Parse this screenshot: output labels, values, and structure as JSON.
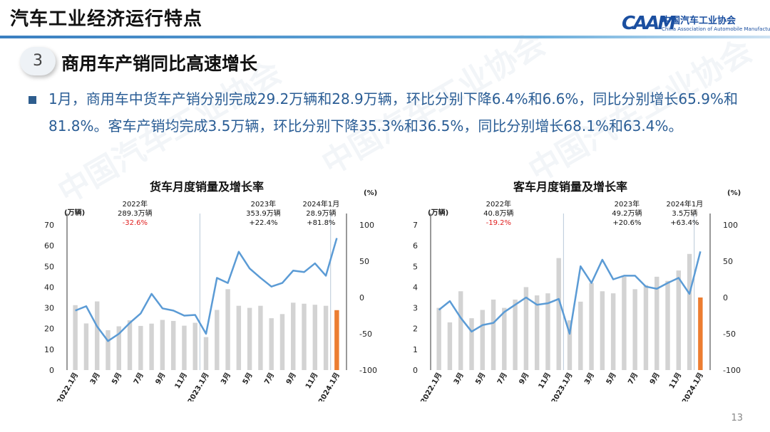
{
  "header": {
    "title": "汽车工业经济运行特点",
    "logo_mark": "CAAM",
    "logo_cn": "中国汽车工业协会",
    "logo_en": "China Association of Automobile Manufacturers"
  },
  "section": {
    "number": "3",
    "title": "商用车产销同比高速增长"
  },
  "summary": "1月，商用车中货车产销分别完成29.2万辆和28.9万辆，环比分别下降6.4%和6.6%，同比分别增长65.9%和81.8%。客车产销均完成3.5万辆，环比分别下降35.3%和36.5%，同比分别增长68.1%和63.4%。",
  "watermark": "中国汽车工业协会",
  "page_number": "13",
  "colors": {
    "bar": "#d3d3d3",
    "bar_highlight": "#ec7d31",
    "line": "#5b9bd5",
    "negative": "#e02020"
  },
  "chart_data": [
    {
      "type": "bar+line",
      "title": "货车月度销量及增长率",
      "left_axis_unit": "(万辆)",
      "right_axis_unit": "(%)",
      "left_ylim": [
        0,
        70
      ],
      "left_ticks": [
        0,
        10,
        20,
        30,
        40,
        50,
        60,
        70
      ],
      "right_ylim": [
        -100,
        100
      ],
      "right_ticks": [
        -100,
        -50,
        0,
        50,
        100
      ],
      "x_tick_labels": [
        "2022.1月",
        "3月",
        "5月",
        "7月",
        "9月",
        "11月",
        "2023.1月",
        "3月",
        "5月",
        "7月",
        "9月",
        "11月",
        "2024.1月"
      ],
      "x_tick_indices": [
        0,
        2,
        4,
        6,
        8,
        10,
        12,
        14,
        16,
        18,
        20,
        22,
        24
      ],
      "series": [
        {
          "name": "销量",
          "axis": "left",
          "values": [
            31.3,
            22.5,
            33.1,
            19.2,
            21.1,
            24.0,
            21.3,
            22.4,
            24.2,
            23.7,
            21.4,
            22.8,
            15.9,
            29.0,
            39.0,
            31.0,
            30.0,
            31.0,
            25.0,
            27.0,
            32.5,
            32.0,
            31.5,
            31.0,
            28.9
          ]
        },
        {
          "name": "增长率",
          "axis": "right",
          "values": [
            -18,
            -12,
            -40,
            -60,
            -50,
            -35,
            -22,
            5,
            -15,
            -18,
            -25,
            -24,
            -50,
            27,
            20,
            63,
            40,
            27,
            15,
            20,
            37,
            35,
            47,
            30,
            81.8
          ]
        }
      ],
      "annotations": [
        {
          "lines": [
            "2022年",
            "289.3万辆"
          ],
          "value": "-32.6%",
          "negative": true
        },
        {
          "lines": [
            "2023年",
            "353.9万辆"
          ],
          "value": "+22.4%",
          "negative": false
        },
        {
          "lines": [
            "2024年1月",
            "28.9万辆"
          ],
          "value": "+81.8%",
          "negative": false
        }
      ]
    },
    {
      "type": "bar+line",
      "title": "客车月度销量及增长率",
      "left_axis_unit": "(万辆)",
      "right_axis_unit": "(%)",
      "left_ylim": [
        0,
        7
      ],
      "left_ticks": [
        0,
        1,
        2,
        3,
        4,
        5,
        6,
        7
      ],
      "right_ylim": [
        -100,
        100
      ],
      "right_ticks": [
        -100,
        -50,
        0,
        50,
        100
      ],
      "x_tick_labels": [
        "2022.1月",
        "3月",
        "5月",
        "7月",
        "9月",
        "11月",
        "2023.1月",
        "3月",
        "5月",
        "7月",
        "9月",
        "11月",
        "2024.1月"
      ],
      "x_tick_indices": [
        0,
        2,
        4,
        6,
        8,
        10,
        12,
        14,
        16,
        18,
        20,
        22,
        24
      ],
      "series": [
        {
          "name": "销量",
          "axis": "left",
          "values": [
            3.0,
            2.3,
            3.8,
            2.5,
            2.9,
            3.4,
            3.0,
            3.4,
            4.0,
            3.6,
            3.7,
            5.4,
            2.4,
            3.3,
            4.2,
            3.8,
            3.7,
            4.5,
            3.9,
            4.1,
            4.5,
            4.3,
            4.8,
            5.6,
            3.5
          ]
        },
        {
          "name": "增长率",
          "axis": "right",
          "values": [
            -17,
            -5,
            -28,
            -47,
            -38,
            -35,
            -20,
            -10,
            0,
            -10,
            -8,
            -2,
            -50,
            43,
            20,
            52,
            25,
            30,
            30,
            15,
            12,
            20,
            27,
            5,
            63.4
          ]
        }
      ],
      "annotations": [
        {
          "lines": [
            "2022年",
            "40.8万辆"
          ],
          "value": "-19.2%",
          "negative": true
        },
        {
          "lines": [
            "2023年",
            "49.2万辆"
          ],
          "value": "+20.6%",
          "negative": false
        },
        {
          "lines": [
            "2024年1月",
            "3.5万辆"
          ],
          "value": "+63.4%",
          "negative": false
        }
      ]
    }
  ]
}
